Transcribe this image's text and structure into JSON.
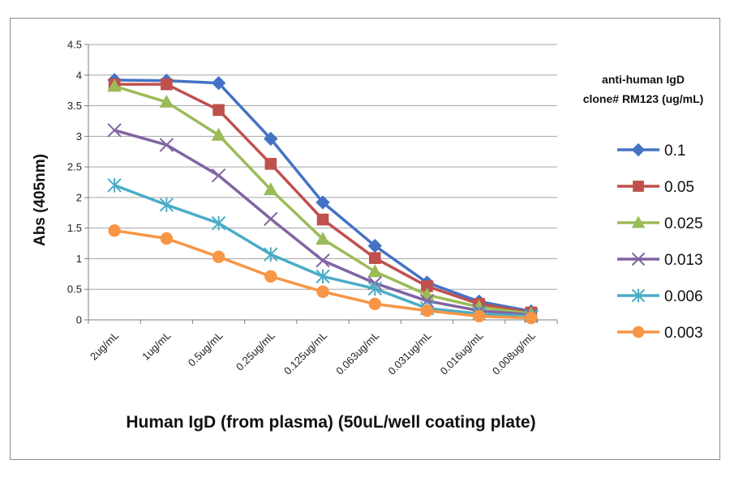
{
  "chart_data": {
    "type": "line",
    "xlabel": "Human IgD (from plasma) (50uL/well coating plate)",
    "ylabel": "Abs (405nm)",
    "ylim": [
      0,
      4.5
    ],
    "yticks": [
      "0",
      "0.5",
      "1",
      "1.5",
      "2",
      "2.5",
      "3",
      "3.5",
      "4",
      "4.5"
    ],
    "ytick_values": [
      0,
      0.5,
      1,
      1.5,
      2,
      2.5,
      3,
      3.5,
      4,
      4.5
    ],
    "grid": true,
    "categories": [
      "2ug/mL",
      "1ug/mL",
      "0.5ug/mL",
      "0.25ug/mL",
      "0.125ug/mL",
      "0.063ug/mL",
      "0.031ug/mL",
      "0.016ug/mL",
      "0.008ug/mL"
    ],
    "legend": {
      "title_line1": "anti-human IgD",
      "title_line2": "clone# RM123 (ug/mL)",
      "placement": "right"
    },
    "series": [
      {
        "name": "0.1",
        "color": "#4472c4",
        "marker": "diamond",
        "values": [
          3.92,
          3.91,
          3.87,
          2.96,
          1.92,
          1.21,
          0.61,
          0.3,
          0.14
        ]
      },
      {
        "name": "0.05",
        "color": "#c0504d",
        "marker": "square",
        "values": [
          3.85,
          3.85,
          3.43,
          2.55,
          1.64,
          1.01,
          0.55,
          0.26,
          0.12
        ]
      },
      {
        "name": "0.025",
        "color": "#9bbb59",
        "marker": "triangle",
        "values": [
          3.82,
          3.56,
          3.02,
          2.13,
          1.32,
          0.79,
          0.41,
          0.21,
          0.1
        ]
      },
      {
        "name": "0.013",
        "color": "#8064a2",
        "marker": "x",
        "values": [
          3.1,
          2.86,
          2.36,
          1.65,
          0.97,
          0.6,
          0.31,
          0.15,
          0.08
        ]
      },
      {
        "name": "0.006",
        "color": "#4bacc6",
        "marker": "star",
        "values": [
          2.2,
          1.88,
          1.58,
          1.07,
          0.71,
          0.51,
          0.19,
          0.1,
          0.06
        ]
      },
      {
        "name": "0.003",
        "color": "#f79646",
        "marker": "circle",
        "values": [
          1.46,
          1.33,
          1.03,
          0.71,
          0.46,
          0.26,
          0.15,
          0.06,
          0.03
        ]
      }
    ]
  }
}
